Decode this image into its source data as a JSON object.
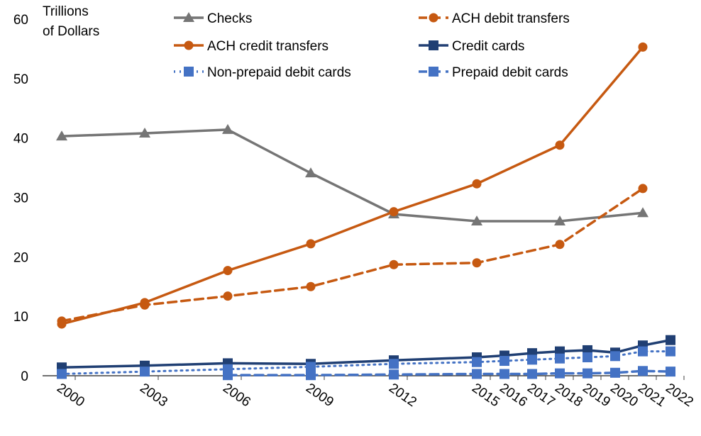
{
  "chart_data": {
    "type": "line",
    "title": "",
    "ylabel": "Trillions of Dollars",
    "ylabel_lines": [
      "Trillions",
      "of Dollars"
    ],
    "xlabel": "",
    "ylim": [
      0,
      60
    ],
    "yticks": [
      0,
      10,
      20,
      30,
      40,
      50,
      60
    ],
    "x": [
      2000,
      2003,
      2006,
      2009,
      2012,
      2015,
      2016,
      2017,
      2018,
      2019,
      2020,
      2021,
      2022
    ],
    "grid": false,
    "legend": "top",
    "series": [
      {
        "name": "Checks",
        "color": "#757575",
        "style": "solid",
        "marker": "triangle",
        "points": [
          [
            2000,
            40.3
          ],
          [
            2003,
            40.8
          ],
          [
            2006,
            41.4
          ],
          [
            2009,
            34.1
          ],
          [
            2012,
            27.2
          ],
          [
            2015,
            26.0
          ],
          [
            2018,
            26.0
          ],
          [
            2021,
            27.4
          ]
        ]
      },
      {
        "name": "ACH debit transfers",
        "color": "#C65911",
        "style": "dashed",
        "marker": "circle",
        "points": [
          [
            2000,
            9.2
          ],
          [
            2003,
            11.9
          ],
          [
            2006,
            13.4
          ],
          [
            2009,
            15.0
          ],
          [
            2012,
            18.7
          ],
          [
            2015,
            19.0
          ],
          [
            2018,
            22.1
          ],
          [
            2021,
            31.5
          ]
        ]
      },
      {
        "name": "ACH credit transfers",
        "color": "#C65911",
        "style": "solid",
        "marker": "circle",
        "points": [
          [
            2000,
            8.7
          ],
          [
            2003,
            12.3
          ],
          [
            2006,
            17.7
          ],
          [
            2009,
            22.2
          ],
          [
            2012,
            27.6
          ],
          [
            2015,
            32.3
          ],
          [
            2018,
            38.8
          ],
          [
            2021,
            55.3
          ]
        ]
      },
      {
        "name": "Credit cards",
        "color": "#203F73",
        "style": "solid",
        "marker": "square",
        "points": [
          [
            2000,
            1.4
          ],
          [
            2003,
            1.7
          ],
          [
            2006,
            2.1
          ],
          [
            2009,
            2.0
          ],
          [
            2012,
            2.6
          ],
          [
            2015,
            3.1
          ],
          [
            2016,
            3.4
          ],
          [
            2017,
            3.8
          ],
          [
            2018,
            4.1
          ],
          [
            2019,
            4.3
          ],
          [
            2020,
            3.9
          ],
          [
            2021,
            5.1
          ],
          [
            2022,
            6.0
          ]
        ]
      },
      {
        "name": "Non-prepaid debit cards",
        "color": "#4472C4",
        "style": "dotted",
        "marker": "square",
        "points": [
          [
            2000,
            0.3
          ],
          [
            2003,
            0.7
          ],
          [
            2006,
            1.1
          ],
          [
            2009,
            1.5
          ],
          [
            2012,
            2.0
          ],
          [
            2015,
            2.3
          ],
          [
            2016,
            2.5
          ],
          [
            2017,
            2.7
          ],
          [
            2018,
            2.9
          ],
          [
            2019,
            3.1
          ],
          [
            2020,
            3.3
          ],
          [
            2021,
            4.1
          ],
          [
            2022,
            4.1
          ]
        ]
      },
      {
        "name": "Prepaid debit cards",
        "color": "#4472C4",
        "style": "dashed",
        "marker": "square",
        "points": [
          [
            2006,
            0.1
          ],
          [
            2009,
            0.1
          ],
          [
            2012,
            0.2
          ],
          [
            2015,
            0.3
          ],
          [
            2016,
            0.3
          ],
          [
            2017,
            0.3
          ],
          [
            2018,
            0.4
          ],
          [
            2019,
            0.4
          ],
          [
            2020,
            0.5
          ],
          [
            2021,
            0.8
          ],
          [
            2022,
            0.7
          ]
        ]
      }
    ]
  }
}
